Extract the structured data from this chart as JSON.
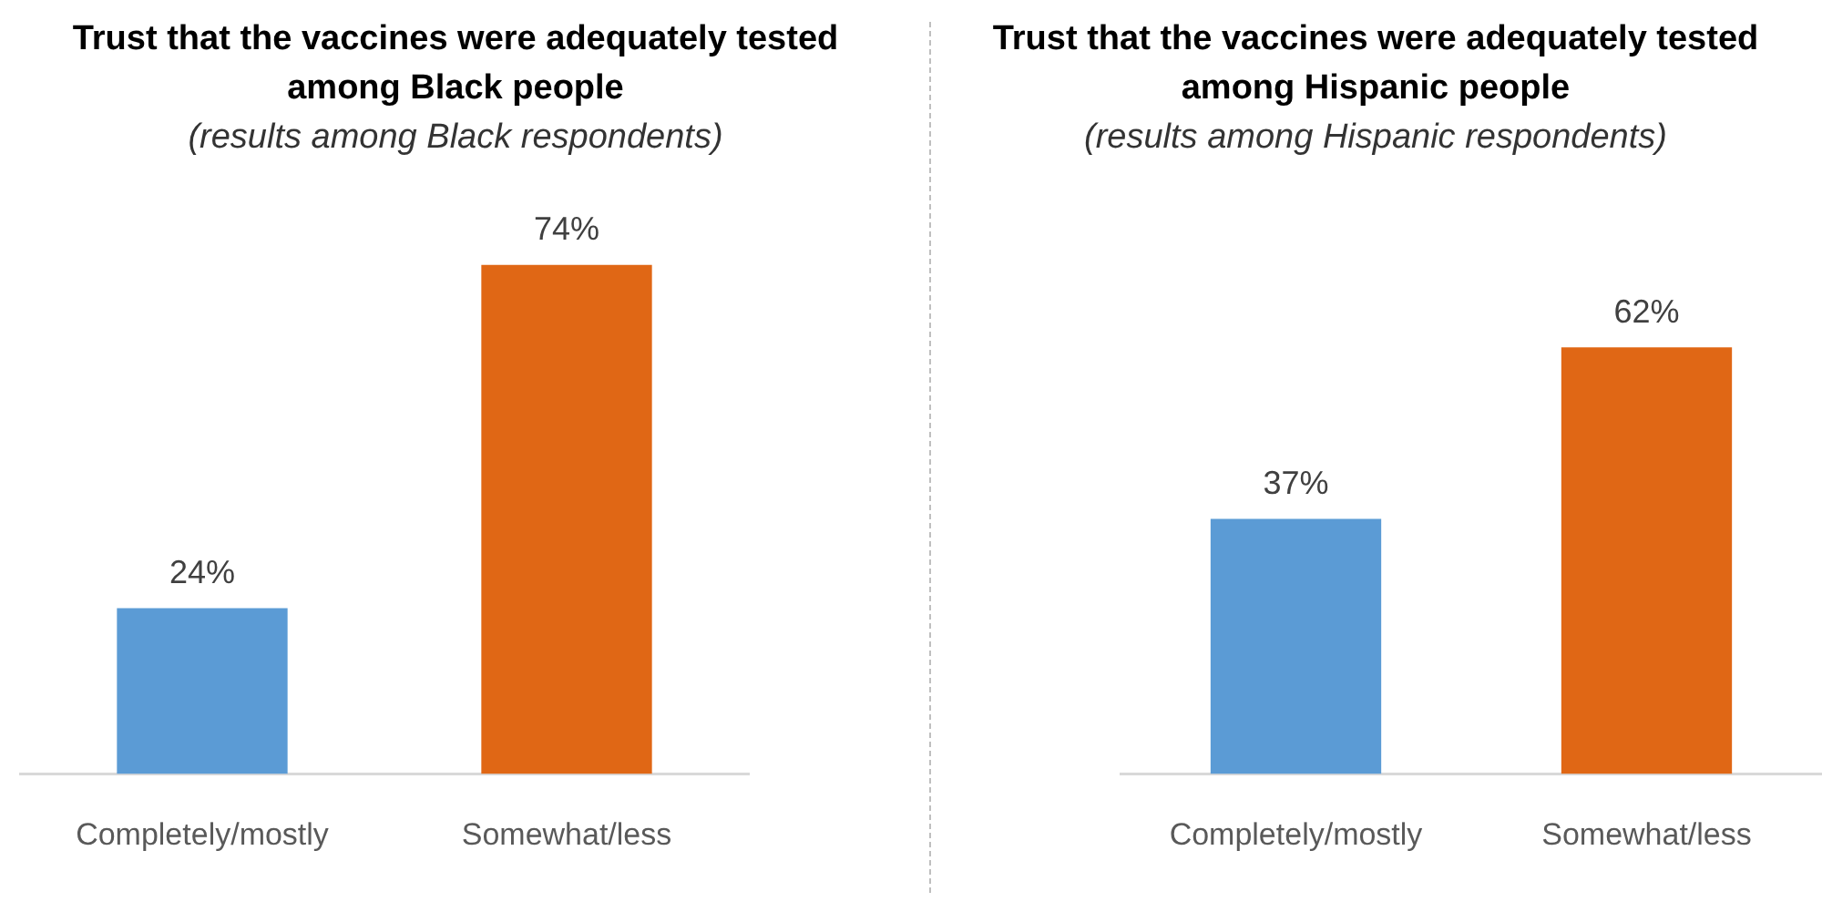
{
  "chart_data": [
    {
      "type": "bar",
      "title": "Trust that the vaccines were adequately tested among Black people",
      "subtitle": "(results among Black respondents)",
      "categories": [
        "Completely/mostly",
        "Somewhat/less"
      ],
      "values": [
        24,
        74
      ],
      "colors": [
        "#5b9bd5",
        "#e06715"
      ],
      "value_labels": [
        "24%",
        "74%"
      ]
    },
    {
      "type": "bar",
      "title": "Trust that the vaccines were adequately tested among Hispanic people",
      "subtitle": "(results among Hispanic respondents)",
      "categories": [
        "Completely/mostly",
        "Somewhat/less"
      ],
      "values": [
        37,
        62
      ],
      "colors": [
        "#5b9bd5",
        "#e06715"
      ],
      "value_labels": [
        "37%",
        "62%"
      ]
    }
  ]
}
